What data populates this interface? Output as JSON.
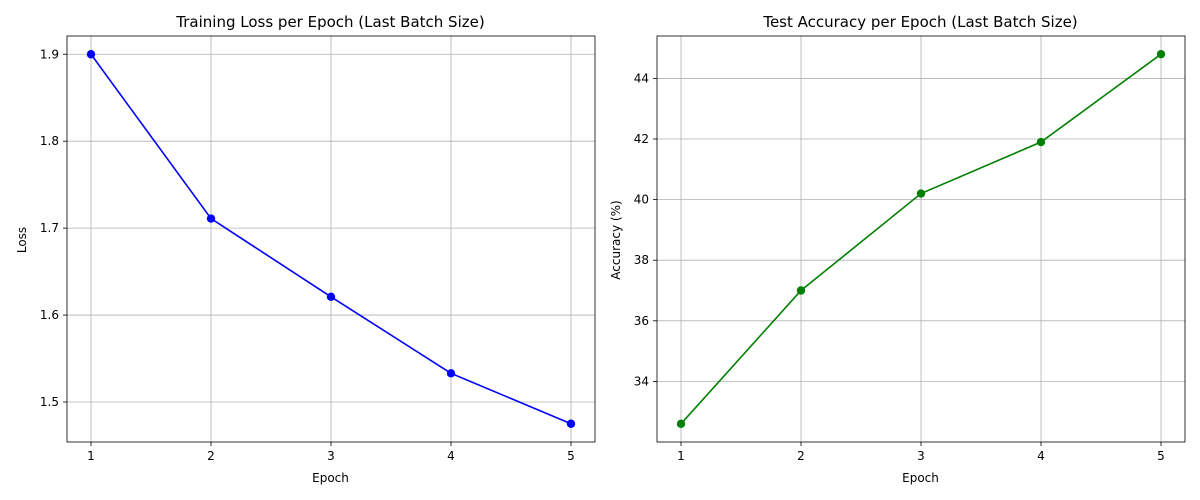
{
  "chart_data": [
    {
      "type": "line",
      "title": "Training Loss per Epoch (Last Batch Size)",
      "xlabel": "Epoch",
      "ylabel": "Loss",
      "x": [
        1,
        2,
        3,
        4,
        5
      ],
      "series": [
        {
          "values": [
            1.9,
            1.711,
            1.621,
            1.533,
            1.475
          ],
          "color": "#0000ff",
          "marker": "circle"
        }
      ],
      "xlim": [
        0.8,
        5.2
      ],
      "ylim": [
        1.454,
        1.921
      ],
      "xticks": [
        1,
        2,
        3,
        4,
        5
      ],
      "yticks": [
        1.5,
        1.6,
        1.7,
        1.8,
        1.9
      ],
      "ytick_labels": [
        "1.5",
        "1.6",
        "1.7",
        "1.8",
        "1.9"
      ],
      "grid": true
    },
    {
      "type": "line",
      "title": "Test Accuracy per Epoch (Last Batch Size)",
      "xlabel": "Epoch",
      "ylabel": "Accuracy (%)",
      "x": [
        1,
        2,
        3,
        4,
        5
      ],
      "series": [
        {
          "values": [
            32.6,
            37.0,
            40.2,
            41.9,
            44.8
          ],
          "color": "#008000",
          "marker": "circle"
        }
      ],
      "xlim": [
        0.8,
        5.2
      ],
      "ylim": [
        32.0,
        45.4
      ],
      "xticks": [
        1,
        2,
        3,
        4,
        5
      ],
      "yticks": [
        34,
        36,
        38,
        40,
        42,
        44
      ],
      "ytick_labels": [
        "34",
        "36",
        "38",
        "40",
        "42",
        "44"
      ],
      "grid": true
    }
  ]
}
